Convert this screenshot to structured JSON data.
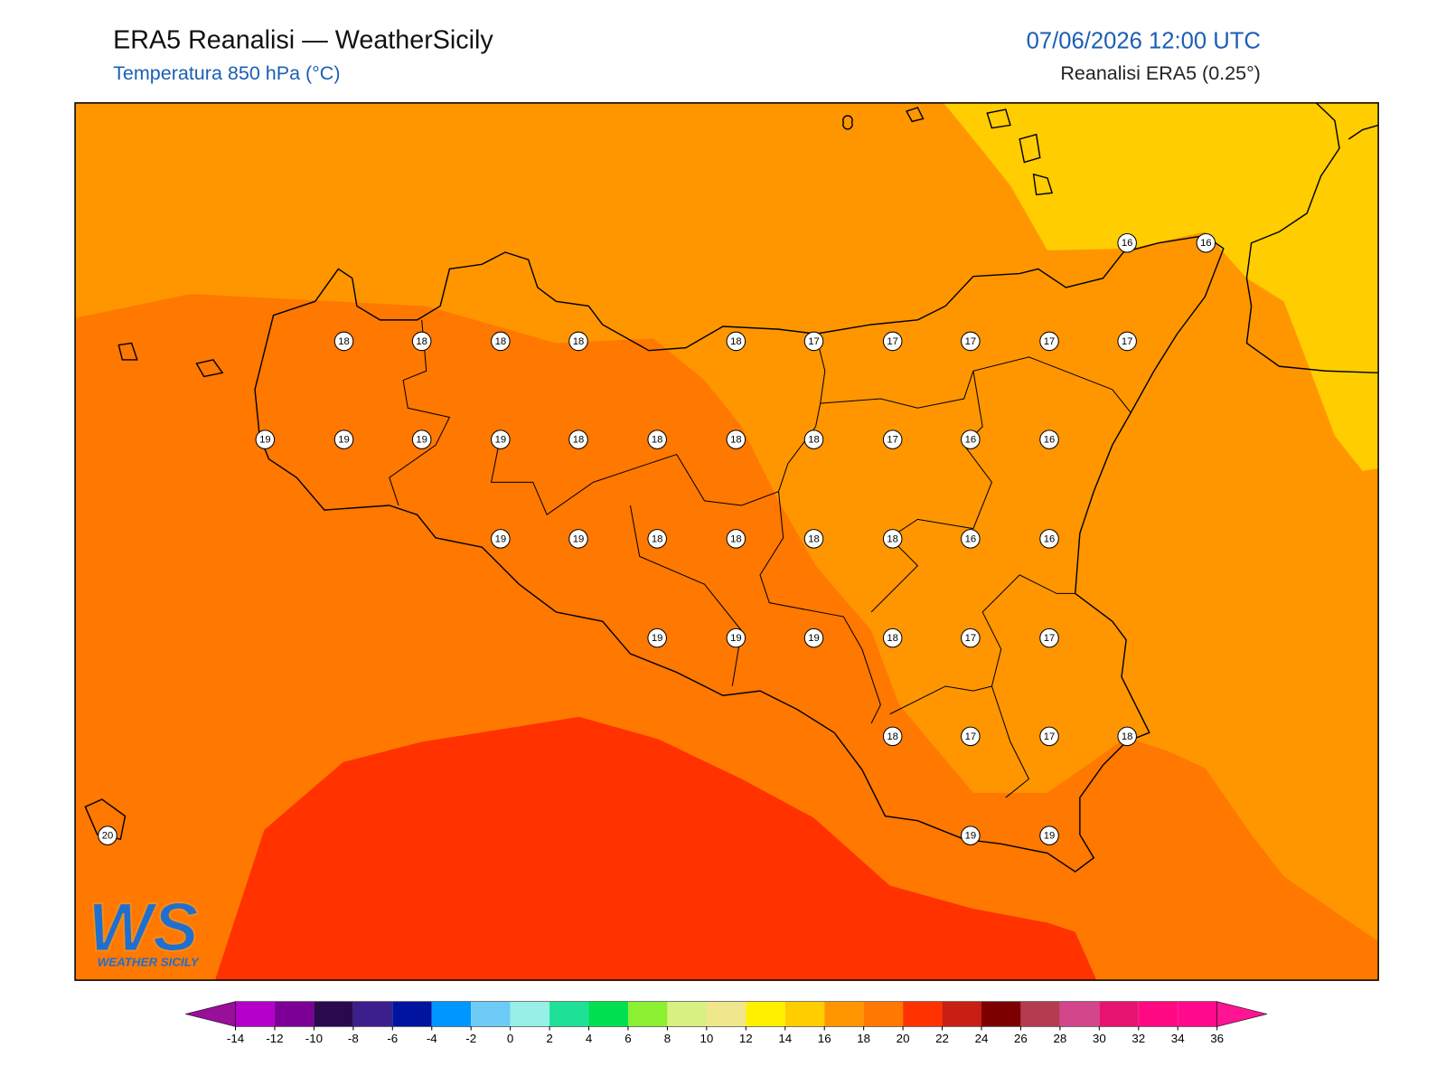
{
  "header": {
    "title": "ERA5 Reanalisi — WeatherSicily",
    "subtitle": "Temperatura 850 hPa (°C)",
    "datetime": "07/06/2026 12:00 UTC",
    "source": "Reanalisi ERA5 (0.25°)"
  },
  "map": {
    "stations": [
      16,
      16,
      18,
      18,
      18,
      18,
      18,
      17,
      17,
      17,
      17,
      17,
      19,
      19,
      19,
      19,
      18,
      18,
      18,
      18,
      17,
      16,
      16,
      19,
      19,
      18,
      18,
      18,
      18,
      16,
      16,
      19,
      19,
      19,
      18,
      17,
      17,
      18,
      17,
      17,
      18,
      20,
      19,
      19
    ],
    "logo": {
      "mark": "WS",
      "text": "WEATHER SICILY"
    }
  },
  "colorbar": {
    "ticks": [
      -14,
      -12,
      -10,
      -8,
      -6,
      -4,
      -2,
      0,
      2,
      4,
      6,
      8,
      10,
      12,
      14,
      16,
      18,
      20,
      22,
      24,
      26,
      28,
      30,
      32,
      34,
      36
    ],
    "colors": [
      "#9a0f9a",
      "#b400c8",
      "#7c0096",
      "#2a0a4e",
      "#3c1e8c",
      "#0014a0",
      "#0096ff",
      "#6ecbf5",
      "#96f0e6",
      "#1ee096",
      "#00e050",
      "#8cf032",
      "#d8f082",
      "#f0e68c",
      "#fff000",
      "#ffcd00",
      "#ff9600",
      "#ff7800",
      "#ff3200",
      "#c81e14",
      "#7d0000",
      "#b43c50",
      "#d2468c",
      "#e6146e",
      "#ff0a82",
      "#ff0a8c",
      "#ff1493"
    ]
  }
}
